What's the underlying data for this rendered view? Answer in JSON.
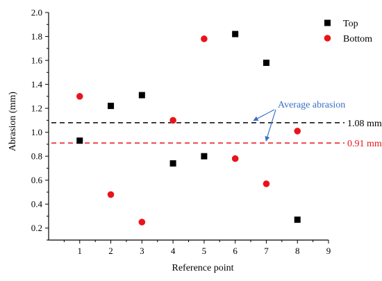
{
  "chart_data": {
    "type": "scatter",
    "xlabel": "Reference point",
    "ylabel": "Abrasion (mm)",
    "xlim": [
      0,
      9
    ],
    "ylim": [
      0.1,
      2.0
    ],
    "x_ticks": [
      1,
      2,
      3,
      4,
      5,
      6,
      7,
      8,
      9
    ],
    "y_ticks": [
      0.2,
      0.4,
      0.6,
      0.8,
      1.0,
      1.2,
      1.4,
      1.6,
      1.8,
      2.0
    ],
    "grid": false,
    "legend_position": "top-right",
    "series": [
      {
        "name": "Top",
        "marker": "square",
        "color": "#000000",
        "x": [
          1,
          2,
          3,
          4,
          5,
          6,
          7,
          8
        ],
        "y": [
          0.93,
          1.22,
          1.31,
          0.74,
          0.8,
          1.82,
          1.58,
          0.27
        ]
      },
      {
        "name": "Bottom",
        "marker": "circle",
        "color": "#e8141b",
        "x": [
          1,
          2,
          3,
          4,
          5,
          6,
          7,
          8
        ],
        "y": [
          1.3,
          0.48,
          0.25,
          1.1,
          1.78,
          0.78,
          0.57,
          1.01
        ]
      }
    ],
    "reference_lines": [
      {
        "y": 1.08,
        "label": "1.08 mm",
        "color": "#000000",
        "style": "dashed"
      },
      {
        "y": 0.91,
        "label": "0.91 mm",
        "color": "#e8141b",
        "style": "dashed"
      }
    ],
    "annotation": {
      "text": "Average abrasion",
      "color": "#3a6fc4"
    }
  }
}
